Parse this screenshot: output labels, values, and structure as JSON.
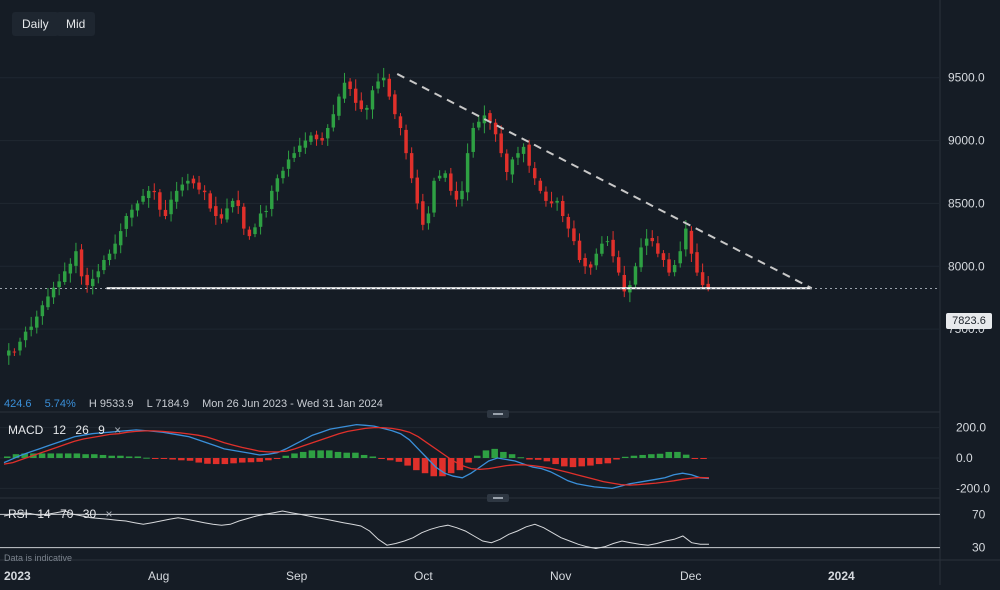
{
  "toolbar": {
    "daily_label": "Daily",
    "mid_label": "Mid"
  },
  "stats": {
    "change": "424.6",
    "change_pct": "5.74%",
    "high": "H 9533.9",
    "low": "L 7184.9",
    "range": "Mon 26 Jun 2023 - Wed 31 Jan 2024"
  },
  "current_price_label": "7823.6",
  "macd_label": "MACD",
  "macd_params": [
    "12",
    "26",
    "9"
  ],
  "rsi_label": "RSI",
  "rsi_params": [
    "14",
    "70",
    "30"
  ],
  "close_glyph": "×",
  "disclaimer": "Data is indicative",
  "colors": {
    "background": "#151c25",
    "up": "#2ea043",
    "down": "#e0302b",
    "macd_line": "#3a8fd9",
    "signal_line": "#e0302b",
    "rsi_line": "#d7d9dc",
    "support": "#ffffff",
    "trendline": "#c8c8c8"
  },
  "chart_data": [
    {
      "type": "candlestick",
      "x_axis_labels": [
        "2023",
        "Aug",
        "Sep",
        "Oct",
        "Nov",
        "Dec",
        "2024"
      ],
      "y_ticks": [
        7500,
        8000,
        8500,
        9000,
        9500
      ],
      "y_tick_labels": [
        "7500.0",
        "8000.0",
        "8500.0",
        "9000.0",
        "9500.0"
      ],
      "ylim": [
        7000,
        9800
      ],
      "x_range": [
        "2023-06-26",
        "2024-01-31"
      ],
      "high": 9533.9,
      "low": 7184.9,
      "last_price": 7823.6,
      "close_series": [
        7330,
        7320,
        7400,
        7480,
        7520,
        7600,
        7690,
        7760,
        7830,
        7880,
        7960,
        8020,
        8120,
        7920,
        7850,
        7900,
        7960,
        8050,
        8100,
        8180,
        8280,
        8400,
        8450,
        8500,
        8560,
        8600,
        8590,
        8450,
        8400,
        8530,
        8600,
        8650,
        8680,
        8660,
        8610,
        8590,
        8460,
        8400,
        8380,
        8460,
        8520,
        8480,
        8300,
        8240,
        8310,
        8420,
        8440,
        8600,
        8700,
        8760,
        8850,
        8900,
        8960,
        9000,
        9040,
        9010,
        9000,
        9100,
        9210,
        9350,
        9460,
        9410,
        9300,
        9250,
        9260,
        9400,
        9470,
        9500,
        9350,
        9210,
        9100,
        8900,
        8700,
        8500,
        8330,
        8420,
        8680,
        8720,
        8740,
        8600,
        8530,
        8600,
        8900,
        9100,
        9150,
        9200,
        9150,
        9050,
        8900,
        8750,
        8850,
        8900,
        8950,
        8800,
        8700,
        8600,
        8520,
        8500,
        8520,
        8400,
        8300,
        8200,
        8050,
        8000,
        7990,
        8100,
        8180,
        8200,
        8080,
        7950,
        7800,
        7850,
        8000,
        8150,
        8220,
        8200,
        8100,
        8050,
        7950,
        8010,
        8120,
        8300,
        8100,
        7950,
        7850,
        7823.6
      ],
      "annotations": [
        {
          "type": "horizontal_support",
          "value": 7825,
          "from": "2023-07-20",
          "to": "2024-01-01"
        },
        {
          "type": "descending_trendline",
          "from_date": "2023-09-26",
          "from_value": 9530,
          "to_date": "2024-01-01",
          "to_value": 7825
        }
      ]
    },
    {
      "type": "line",
      "name": "MACD",
      "y_tick_labels": [
        "200.0",
        "0.0",
        "-200.0"
      ],
      "ylim": [
        -250,
        250
      ],
      "series": [
        {
          "name": "MACD",
          "values": [
            -30,
            -5,
            20,
            40,
            60,
            80,
            100,
            120,
            140,
            150,
            160,
            165,
            170,
            175,
            180,
            185,
            180,
            175,
            170,
            160,
            150,
            140,
            120,
            100,
            80,
            60,
            50,
            40,
            30,
            20,
            25,
            35,
            60,
            90,
            120,
            150,
            170,
            190,
            200,
            210,
            220,
            215,
            210,
            195,
            180,
            160,
            120,
            60,
            0,
            -60,
            -100,
            -120,
            -130,
            -100,
            -60,
            -20,
            0,
            -10,
            -20,
            -40,
            -60,
            -70,
            -90,
            -120,
            -150,
            -170,
            -180,
            -190,
            -195,
            -200,
            -185,
            -170,
            -160,
            -150,
            -140,
            -130,
            -110,
            -100,
            -110,
            -130,
            -135
          ]
        },
        {
          "name": "Signal",
          "values": [
            -40,
            -30,
            -10,
            10,
            30,
            50,
            70,
            90,
            110,
            125,
            135,
            145,
            155,
            160,
            170,
            175,
            178,
            178,
            175,
            170,
            165,
            158,
            150,
            138,
            120,
            100,
            85,
            70,
            58,
            45,
            40,
            40,
            45,
            60,
            80,
            100,
            120,
            140,
            160,
            175,
            185,
            195,
            200,
            200,
            195,
            185,
            170,
            140,
            100,
            60,
            20,
            -20,
            -50,
            -70,
            -75,
            -70,
            -60,
            -50,
            -45,
            -45,
            -50,
            -58,
            -68,
            -80,
            -95,
            -110,
            -125,
            -140,
            -155,
            -165,
            -175,
            -178,
            -175,
            -170,
            -165,
            -158,
            -150,
            -140,
            -132,
            -128,
            -130
          ]
        }
      ],
      "histogram": [
        10,
        25,
        30,
        30,
        30,
        30,
        30,
        30,
        30,
        25,
        25,
        20,
        15,
        15,
        10,
        10,
        2,
        -3,
        -5,
        -10,
        -15,
        -18,
        -30,
        -38,
        -40,
        -40,
        -35,
        -30,
        -28,
        -25,
        -15,
        -5,
        15,
        30,
        40,
        50,
        50,
        50,
        40,
        35,
        35,
        20,
        10,
        -5,
        -15,
        -25,
        -50,
        -80,
        -100,
        -120,
        -120,
        -100,
        -80,
        -30,
        15,
        50,
        60,
        40,
        25,
        5,
        -10,
        -12,
        -22,
        -40,
        -55,
        -60,
        -55,
        -50,
        -40,
        -35,
        -10,
        8,
        15,
        20,
        25,
        28,
        40,
        40,
        22,
        -2,
        -5
      ]
    },
    {
      "type": "line",
      "name": "RSI",
      "y_tick_labels": [
        "70",
        "30"
      ],
      "levels": [
        70,
        30
      ],
      "ylim": [
        20,
        80
      ],
      "values": [
        68,
        70,
        72,
        71,
        69,
        70,
        72,
        74,
        70,
        68,
        66,
        65,
        64,
        63,
        62,
        60,
        58,
        60,
        62,
        64,
        66,
        64,
        62,
        60,
        58,
        57,
        58,
        62,
        65,
        68,
        70,
        72,
        74,
        72,
        70,
        68,
        66,
        64,
        62,
        60,
        58,
        56,
        50,
        40,
        33,
        35,
        38,
        42,
        48,
        52,
        55,
        57,
        54,
        50,
        44,
        38,
        36,
        40,
        46,
        50,
        55,
        58,
        54,
        48,
        42,
        38,
        34,
        31,
        29,
        31,
        35,
        38,
        36,
        34,
        33,
        35,
        38,
        40,
        44,
        36,
        34,
        34
      ]
    }
  ]
}
